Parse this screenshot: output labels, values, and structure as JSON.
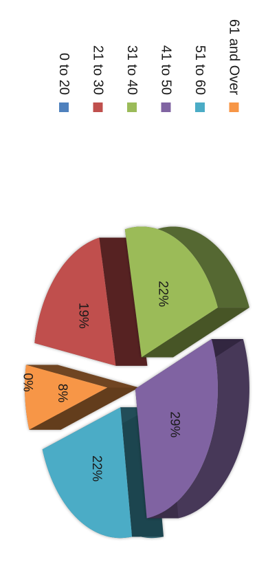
{
  "chart_data": {
    "type": "pie",
    "style": "3d-exploded",
    "orientation": "rotated-90-clockwise",
    "categories": [
      "0 to 20",
      "21 to 30",
      "31 to 40",
      "41 to 50",
      "51 to 60",
      "61 and Over"
    ],
    "values": [
      0,
      19,
      22,
      29,
      22,
      8
    ],
    "unit": "%",
    "data_labels": [
      "0%",
      "19%",
      "22%",
      "29%",
      "22%",
      "8%"
    ],
    "colors": [
      "#4f81bd",
      "#c0504d",
      "#9bbb59",
      "#8064a2",
      "#4bacc6",
      "#f79646"
    ],
    "legend": {
      "placement": "right",
      "entries": [
        "0 to 20",
        "21 to 30",
        "31 to 40",
        "41 to 50",
        "51 to 60",
        "61 and Over"
      ]
    },
    "title": "",
    "xlabel": "",
    "ylabel": ""
  }
}
